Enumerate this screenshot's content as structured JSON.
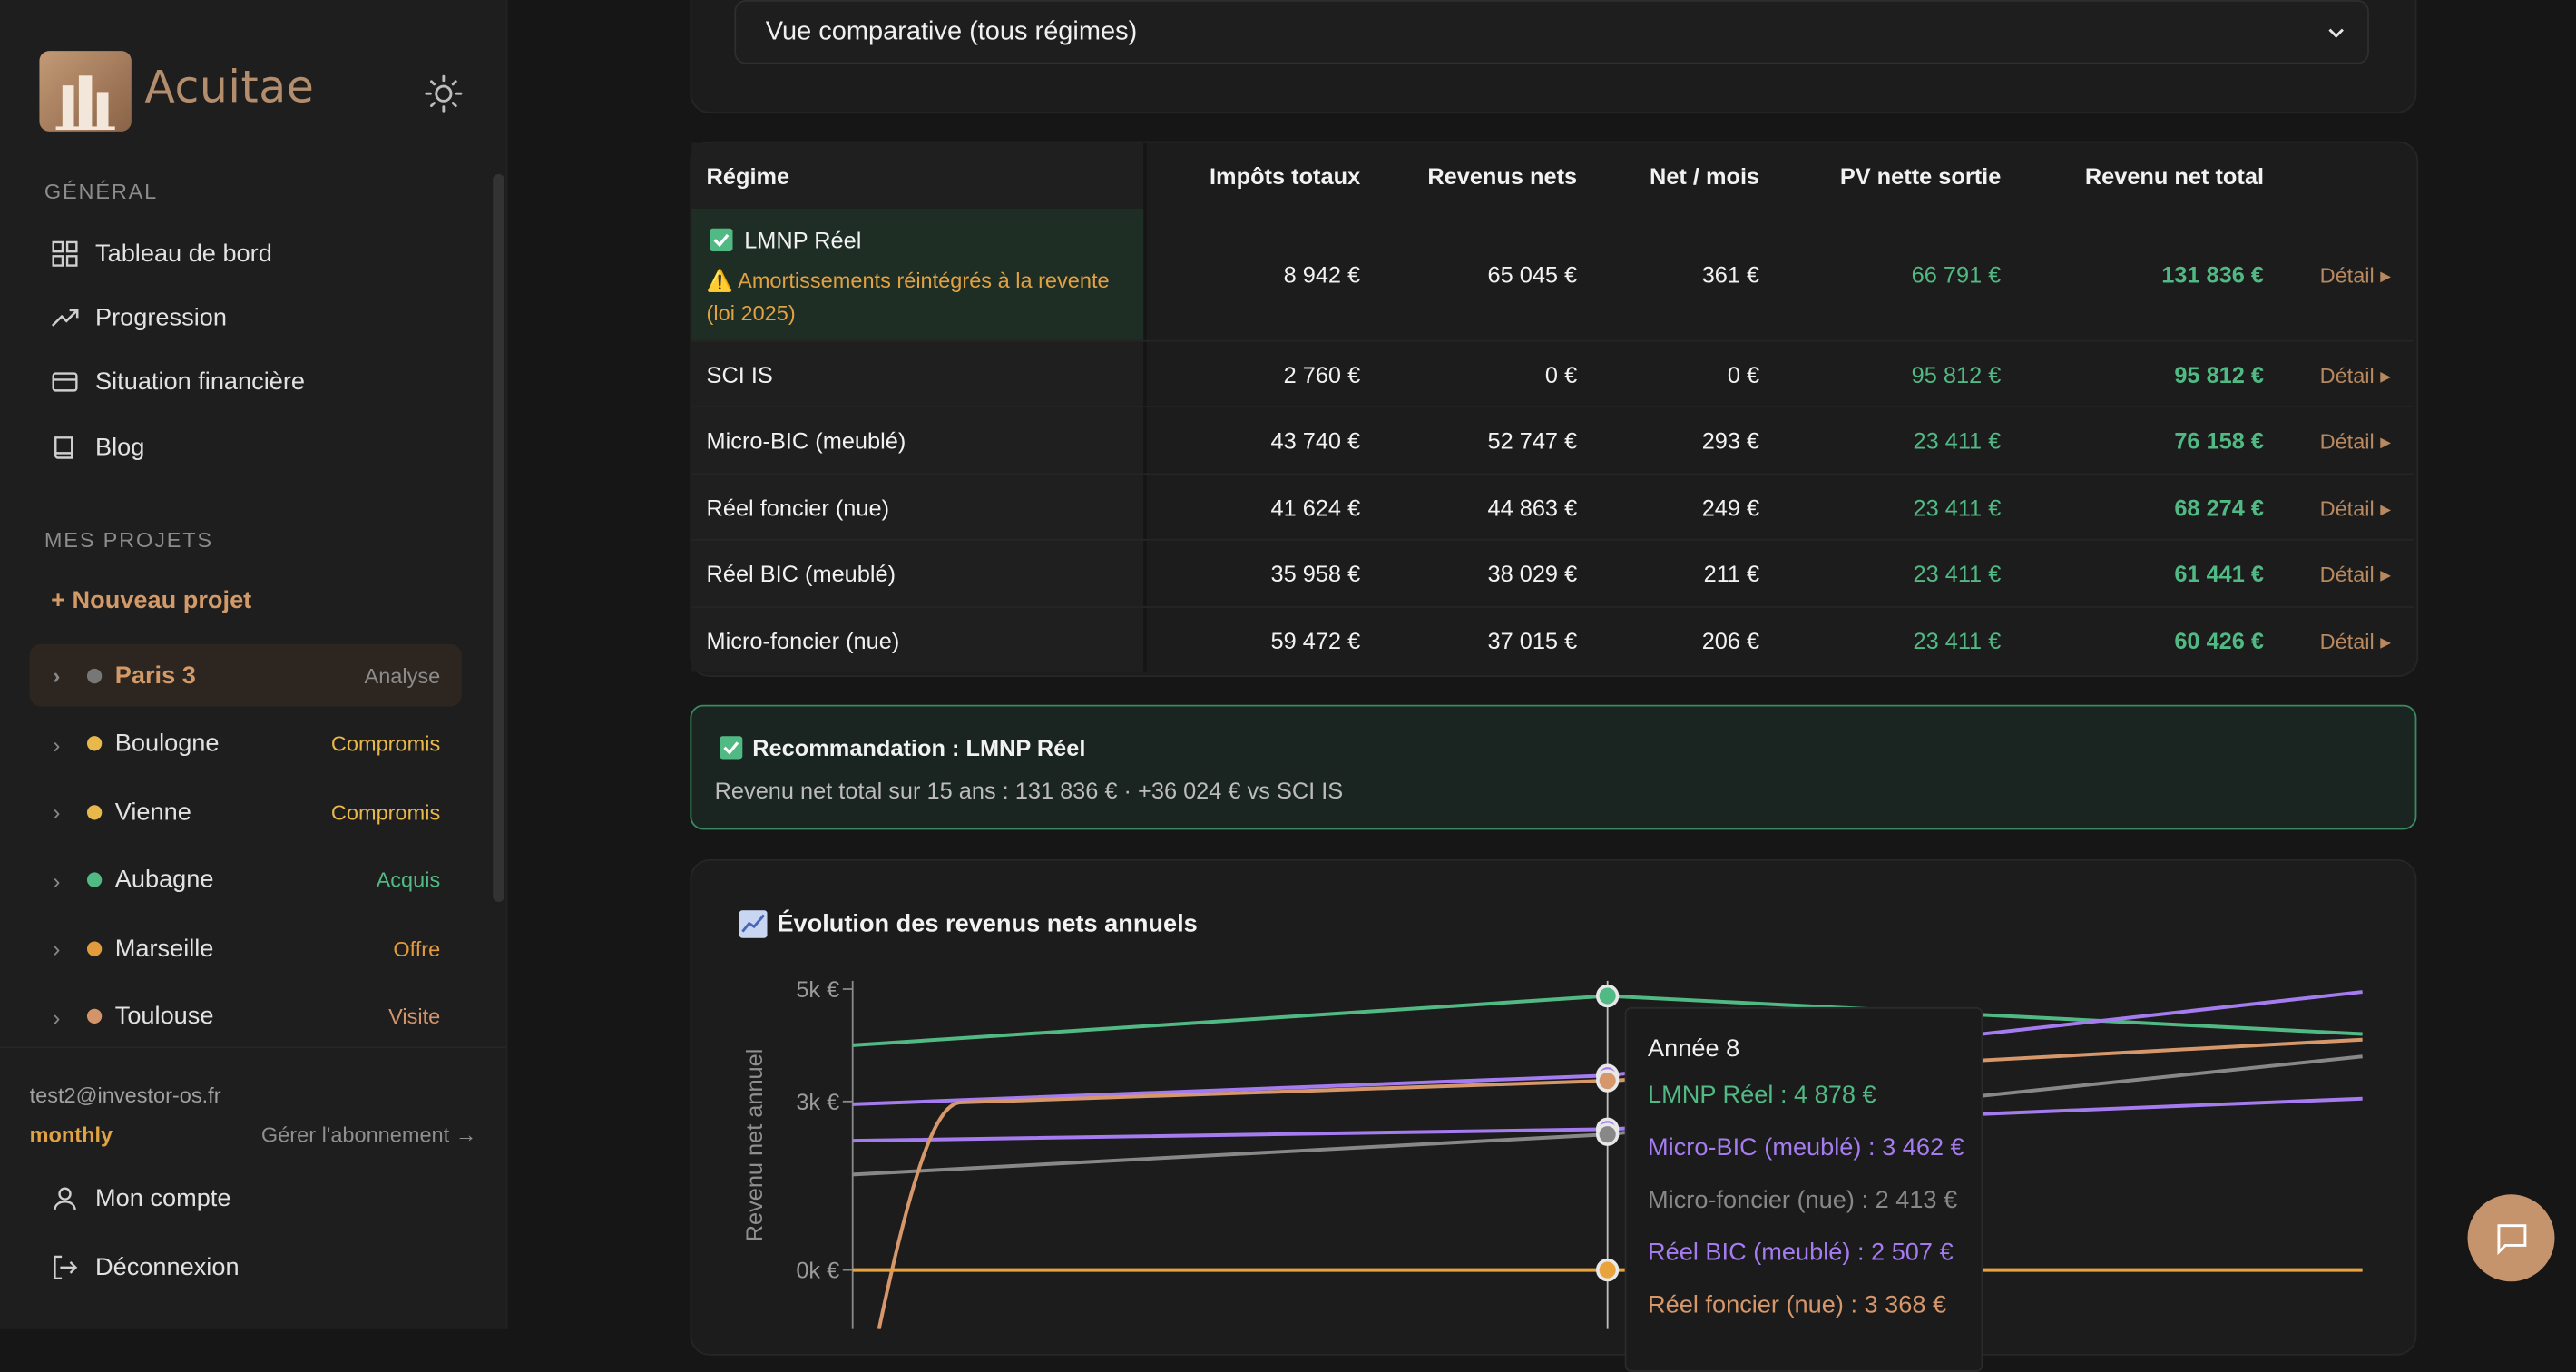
{
  "sidebar": {
    "brand": "Acuitae",
    "general_label": "GÉNÉRAL",
    "nav": [
      {
        "label": "Tableau de bord",
        "icon": "grid-icon"
      },
      {
        "label": "Progression",
        "icon": "trend-icon"
      },
      {
        "label": "Situation financière",
        "icon": "card-icon"
      },
      {
        "label": "Blog",
        "icon": "book-icon"
      }
    ],
    "projects_label": "MES PROJETS",
    "new_project": "+ Nouveau projet",
    "projects": [
      {
        "name": "Paris 3",
        "status": "Analyse",
        "dot": "#777777",
        "status_color": "#8c8c8c",
        "active": true
      },
      {
        "name": "Boulogne",
        "status": "Compromis",
        "dot": "#e8b84a",
        "status_color": "#e8b84a"
      },
      {
        "name": "Vienne",
        "status": "Compromis",
        "dot": "#e8b84a",
        "status_color": "#e8b84a"
      },
      {
        "name": "Aubagne",
        "status": "Acquis",
        "dot": "#51b984",
        "status_color": "#51b984"
      },
      {
        "name": "Marseille",
        "status": "Offre",
        "dot": "#e39a3d",
        "status_color": "#e39a3d"
      },
      {
        "name": "Toulouse",
        "status": "Visite",
        "dot": "#d3946a",
        "status_color": "#d3946a"
      }
    ],
    "email": "test2@investor-os.fr",
    "plan": "monthly",
    "manage": "Gérer l'abonnement →",
    "account": "Mon compte",
    "logout": "Déconnexion"
  },
  "select": {
    "value": "Vue comparative (tous régimes)"
  },
  "table": {
    "headers": [
      "Régime",
      "Impôts totaux",
      "Revenus nets",
      "Net / mois",
      "PV nette sortie",
      "Revenu net total"
    ],
    "detail_label": "Détail ▸",
    "warning": "Amortissements réintégrés à la revente (loi 2025)",
    "rows": [
      {
        "regime": "LMNP Réel",
        "impots": "8 942 €",
        "revenus": "65 045 €",
        "mois": "361 €",
        "pv": "66 791 €",
        "total": "131 836 €"
      },
      {
        "regime": "SCI IS",
        "impots": "2 760 €",
        "revenus": "0 €",
        "mois": "0 €",
        "pv": "95 812 €",
        "total": "95 812 €"
      },
      {
        "regime": "Micro-BIC (meublé)",
        "impots": "43 740 €",
        "revenus": "52 747 €",
        "mois": "293 €",
        "pv": "23 411 €",
        "total": "76 158 €"
      },
      {
        "regime": "Réel foncier (nue)",
        "impots": "41 624 €",
        "revenus": "44 863 €",
        "mois": "249 €",
        "pv": "23 411 €",
        "total": "68 274 €"
      },
      {
        "regime": "Réel BIC (meublé)",
        "impots": "35 958 €",
        "revenus": "38 029 €",
        "mois": "211 €",
        "pv": "23 411 €",
        "total": "61 441 €"
      },
      {
        "regime": "Micro-foncier (nue)",
        "impots": "59 472 €",
        "revenus": "37 015 €",
        "mois": "206 €",
        "pv": "23 411 €",
        "total": "60 426 €"
      }
    ]
  },
  "recommendation": {
    "title": "Recommandation : LMNP Réel",
    "text": "Revenu net total sur 15 ans : 131 836 € · +36 024 € vs SCI IS"
  },
  "chart": {
    "title": "Évolution des revenus nets annuels",
    "tooltip_title": "Année 8",
    "tooltip": [
      {
        "text": "LMNP Réel : 4 878 €",
        "color": "#51b984"
      },
      {
        "text": "Micro-BIC (meublé) : 3 462 €",
        "color": "#a57cf0"
      },
      {
        "text": "Micro-foncier (nue) : 2 413 €",
        "color": "#888888"
      },
      {
        "text": "Réel BIC (meublé) : 2 507 €",
        "color": "#a57cf0"
      },
      {
        "text": "Réel foncier (nue) : 3 368 €",
        "color": "#d6976a"
      }
    ]
  },
  "chart_data": {
    "type": "line",
    "title": "Évolution des revenus nets annuels",
    "ylabel": "Revenu net annuel",
    "yticks": [
      "5k €",
      "3k €",
      "0k €"
    ],
    "ylim": [
      -500,
      5000
    ],
    "x": [
      1,
      8,
      15
    ],
    "series": [
      {
        "name": "LMNP Réel",
        "color": "#51b984",
        "values": [
          4000,
          4878,
          4200
        ]
      },
      {
        "name": "Micro-BIC (meublé)",
        "color": "#a57cf0",
        "values": [
          2950,
          3462,
          4950
        ]
      },
      {
        "name": "Réel BIC (meublé)",
        "color": "#a57cf0",
        "values": [
          2300,
          2507,
          3050
        ]
      },
      {
        "name": "Micro-foncier (nue)",
        "color": "#888888",
        "values": [
          1700,
          2413,
          3800
        ]
      },
      {
        "name": "Réel foncier (nue)",
        "color": "#d6976a",
        "values": [
          -1000,
          3368,
          4100
        ]
      },
      {
        "name": "SCI IS",
        "color": "#e8a33d",
        "values": [
          0,
          0,
          0
        ]
      }
    ]
  }
}
